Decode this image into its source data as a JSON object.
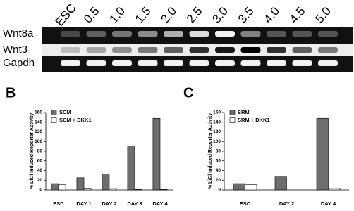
{
  "gel": {
    "lanes": [
      "ESC",
      "0.5",
      "1.0",
      "1.5",
      "2.0",
      "2.5",
      "3.0",
      "3.5",
      "4.0",
      "4.5",
      "5.0"
    ],
    "rows": [
      "Wnt8a",
      "Wnt3",
      "Gapdh"
    ]
  },
  "chart_data": [
    {
      "type": "bar",
      "panel_label": "B",
      "y_label": "% LiCl Induced Reporter Activity",
      "categories": [
        "ESC",
        "DAY 1",
        "DAY 2",
        "DAY 3",
        "DAY 4"
      ],
      "series": [
        {
          "name": "SCM",
          "color": "#6e6e6e",
          "values": [
            13,
            25,
            33,
            91,
            148
          ]
        },
        {
          "name": "SCM + DKK1",
          "color": "#ffffff",
          "values": [
            11,
            2,
            3,
            1,
            1
          ]
        }
      ],
      "ylim": [
        0,
        160
      ],
      "yticks": [
        0,
        20,
        40,
        60,
        80,
        100,
        120,
        140,
        160
      ],
      "legend": "upper left"
    },
    {
      "type": "bar",
      "panel_label": "C",
      "y_label": "% LiCl Induced Reporter Activity",
      "categories": [
        "ESC",
        "DAY 2",
        "DAY 4"
      ],
      "series": [
        {
          "name": "SRM",
          "color": "#6e6e6e",
          "values": [
            13,
            28,
            148
          ]
        },
        {
          "name": "SRM + DKK1",
          "color": "#ffffff",
          "values": [
            11,
            0,
            3
          ]
        }
      ],
      "ylim": [
        0,
        160
      ],
      "yticks": [
        0,
        20,
        40,
        60,
        80,
        100,
        120,
        140,
        160
      ],
      "legend": "upper left"
    }
  ]
}
